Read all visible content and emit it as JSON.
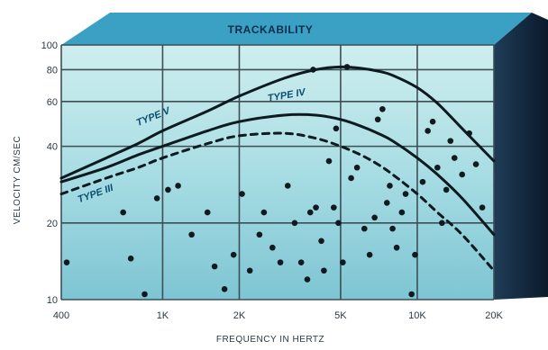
{
  "chart_data": {
    "type": "line",
    "title": "TRACKABILITY",
    "xlabel": "FREQUENCY IN HERTZ",
    "ylabel": "VELOCITY CM/SEC",
    "x_scale": "log",
    "y_scale": "log",
    "xlim": [
      400,
      20000
    ],
    "ylim": [
      10,
      100
    ],
    "x_ticks": [
      {
        "value": 400,
        "label": "400"
      },
      {
        "value": 1000,
        "label": "1K"
      },
      {
        "value": 2000,
        "label": "2K"
      },
      {
        "value": 5000,
        "label": "5K"
      },
      {
        "value": 10000,
        "label": "10K"
      },
      {
        "value": 20000,
        "label": "20K"
      }
    ],
    "y_ticks": [
      {
        "value": 10,
        "label": "10"
      },
      {
        "value": 20,
        "label": "20"
      },
      {
        "value": 40,
        "label": "40"
      },
      {
        "value": 60,
        "label": "60"
      },
      {
        "value": 80,
        "label": "80"
      },
      {
        "value": 100,
        "label": "100"
      }
    ],
    "grid": true,
    "series": [
      {
        "name": "TYPE V",
        "style": "solid",
        "x": [
          400,
          600,
          800,
          1000,
          1500,
          2000,
          3000,
          4000,
          5000,
          6000,
          7000,
          8000,
          10000,
          12000,
          15000,
          20000
        ],
        "y": [
          30,
          36,
          41,
          46,
          55,
          63,
          74,
          80,
          82,
          81,
          79,
          76,
          68,
          59,
          47,
          35
        ]
      },
      {
        "name": "TYPE IV",
        "style": "solid",
        "x": [
          400,
          600,
          800,
          1000,
          1500,
          2000,
          3000,
          4000,
          5000,
          6000,
          7000,
          8000,
          10000,
          12000,
          15000,
          20000
        ],
        "y": [
          29,
          33,
          37,
          40,
          46,
          50,
          53,
          53,
          51,
          48,
          45,
          42,
          36,
          31,
          25,
          18
        ]
      },
      {
        "name": "TYPE III",
        "style": "dashed",
        "x": [
          400,
          600,
          800,
          1000,
          1500,
          2000,
          3000,
          4000,
          5000,
          6000,
          7000,
          8000,
          10000,
          12000,
          15000,
          20000
        ],
        "y": [
          26,
          30,
          33,
          36,
          41,
          44,
          45,
          43,
          40,
          37,
          34,
          31,
          26,
          22,
          18,
          13
        ]
      }
    ],
    "scatter_points": [
      [
        420,
        14
      ],
      [
        700,
        22
      ],
      [
        750,
        14.5
      ],
      [
        850,
        10.5
      ],
      [
        950,
        25
      ],
      [
        1050,
        27
      ],
      [
        1150,
        28
      ],
      [
        1300,
        18
      ],
      [
        1500,
        22
      ],
      [
        1600,
        13.5
      ],
      [
        1750,
        11
      ],
      [
        1900,
        15
      ],
      [
        2050,
        26
      ],
      [
        2200,
        13
      ],
      [
        2400,
        18
      ],
      [
        2500,
        22
      ],
      [
        2700,
        16
      ],
      [
        2900,
        14
      ],
      [
        3100,
        28
      ],
      [
        3300,
        20
      ],
      [
        3500,
        14
      ],
      [
        3700,
        12
      ],
      [
        3800,
        22
      ],
      [
        4000,
        23
      ],
      [
        4200,
        17
      ],
      [
        4300,
        13
      ],
      [
        4500,
        35
      ],
      [
        4700,
        23
      ],
      [
        4900,
        20
      ],
      [
        5100,
        14
      ],
      [
        5300,
        82
      ],
      [
        5500,
        30
      ],
      [
        5800,
        33
      ],
      [
        6200,
        19
      ],
      [
        6500,
        15
      ],
      [
        6800,
        21
      ],
      [
        7000,
        51
      ],
      [
        7300,
        56
      ],
      [
        7600,
        24
      ],
      [
        7800,
        28
      ],
      [
        8000,
        19
      ],
      [
        8300,
        16
      ],
      [
        8700,
        22
      ],
      [
        9000,
        26
      ],
      [
        9500,
        10.5
      ],
      [
        9800,
        15
      ],
      [
        10500,
        29
      ],
      [
        11000,
        46
      ],
      [
        11500,
        50
      ],
      [
        12000,
        33
      ],
      [
        12500,
        20
      ],
      [
        13000,
        27
      ],
      [
        13500,
        42
      ],
      [
        14000,
        36
      ],
      [
        15000,
        31
      ],
      [
        16000,
        45
      ],
      [
        17000,
        34
      ],
      [
        18000,
        23
      ],
      [
        3900,
        80
      ],
      [
        4800,
        47
      ]
    ]
  }
}
